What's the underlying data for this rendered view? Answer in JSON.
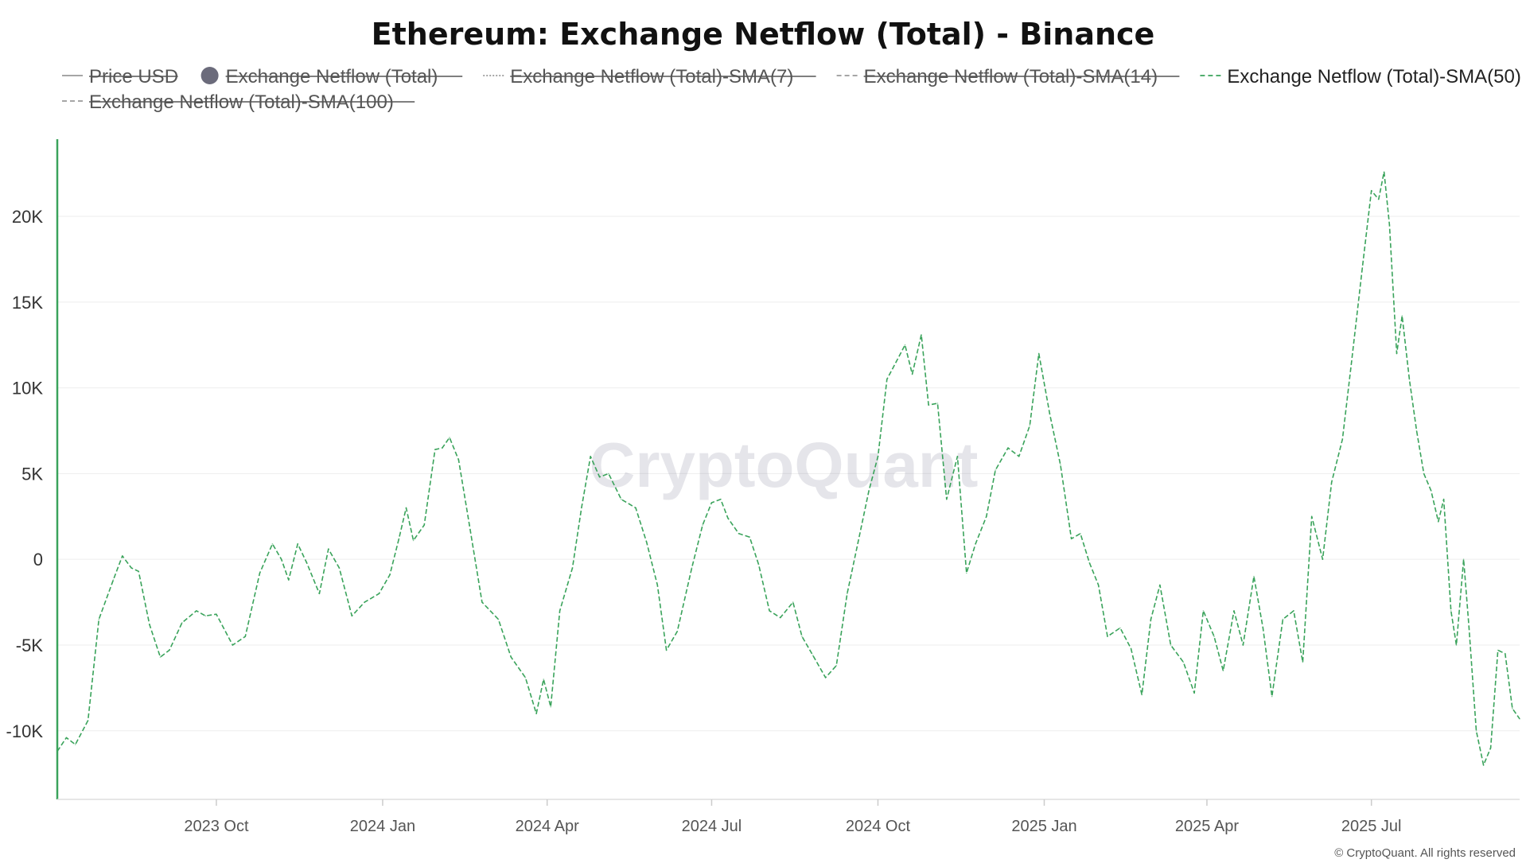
{
  "chart_data": {
    "type": "line",
    "title": "Ethereum: Exchange Netflow (Total) - Binance",
    "legend": [
      {
        "name": "Price USD",
        "style": "solid-line",
        "active": false
      },
      {
        "name": "Exchange Netflow (Total)",
        "style": "dot",
        "active": false
      },
      {
        "name": "Exchange Netflow (Total)-SMA(7)",
        "style": "dotted-line",
        "active": false
      },
      {
        "name": "Exchange Netflow (Total)-SMA(14)",
        "style": "dashed-line",
        "active": false
      },
      {
        "name": "Exchange Netflow (Total)-SMA(50)",
        "style": "dashed-line",
        "active": true
      },
      {
        "name": "Exchange Netflow (Total)-SMA(100)",
        "style": "dashed-line",
        "active": false
      }
    ],
    "legend_placement": "top",
    "y_ticks": [
      {
        "value": -10000,
        "label": "-10K"
      },
      {
        "value": -5000,
        "label": "-5K"
      },
      {
        "value": 0,
        "label": "0"
      },
      {
        "value": 5000,
        "label": "5K"
      },
      {
        "value": 10000,
        "label": "10K"
      },
      {
        "value": 15000,
        "label": "15K"
      },
      {
        "value": 20000,
        "label": "20K"
      }
    ],
    "ylim": [
      -14000,
      24500
    ],
    "x_ticks": [
      {
        "date": "2023-10-01",
        "label": "2023 Oct"
      },
      {
        "date": "2024-01-01",
        "label": "2024 Jan"
      },
      {
        "date": "2024-04-01",
        "label": "2024 Apr"
      },
      {
        "date": "2024-07-01",
        "label": "2024 Jul"
      },
      {
        "date": "2024-10-01",
        "label": "2024 Oct"
      },
      {
        "date": "2025-01-01",
        "label": "2025 Jan"
      },
      {
        "date": "2025-04-01",
        "label": "2025 Apr"
      },
      {
        "date": "2025-07-01",
        "label": "2025 Jul"
      }
    ],
    "xlim": [
      "2023-07-05",
      "2025-09-21"
    ],
    "grid": true,
    "series": [
      {
        "name": "Exchange Netflow (Total)-SMA(50)",
        "color": "#3aa35b",
        "points": [
          [
            "2023-07-05",
            -11200
          ],
          [
            "2023-07-10",
            -10400
          ],
          [
            "2023-07-15",
            -10800
          ],
          [
            "2023-07-22",
            -9400
          ],
          [
            "2023-07-28",
            -3500
          ],
          [
            "2023-08-05",
            -1200
          ],
          [
            "2023-08-10",
            200
          ],
          [
            "2023-08-15",
            -500
          ],
          [
            "2023-08-19",
            -700
          ],
          [
            "2023-08-25",
            -3800
          ],
          [
            "2023-08-31",
            -5700
          ],
          [
            "2023-09-05",
            -5300
          ],
          [
            "2023-09-12",
            -3700
          ],
          [
            "2023-09-20",
            -3000
          ],
          [
            "2023-09-25",
            -3300
          ],
          [
            "2023-10-01",
            -3200
          ],
          [
            "2023-10-10",
            -5000
          ],
          [
            "2023-10-17",
            -4500
          ],
          [
            "2023-10-25",
            -800
          ],
          [
            "2023-11-01",
            900
          ],
          [
            "2023-11-06",
            0
          ],
          [
            "2023-11-10",
            -1200
          ],
          [
            "2023-11-15",
            900
          ],
          [
            "2023-11-20",
            -200
          ],
          [
            "2023-11-27",
            -2000
          ],
          [
            "2023-12-02",
            600
          ],
          [
            "2023-12-08",
            -500
          ],
          [
            "2023-12-15",
            -3300
          ],
          [
            "2023-12-22",
            -2500
          ],
          [
            "2023-12-30",
            -2000
          ],
          [
            "2024-01-05",
            -900
          ],
          [
            "2024-01-10",
            1200
          ],
          [
            "2024-01-14",
            3000
          ],
          [
            "2024-01-18",
            1100
          ],
          [
            "2024-01-24",
            2000
          ],
          [
            "2024-01-30",
            6400
          ],
          [
            "2024-02-03",
            6500
          ],
          [
            "2024-02-07",
            7100
          ],
          [
            "2024-02-12",
            5800
          ],
          [
            "2024-02-18",
            2000
          ],
          [
            "2024-02-25",
            -2500
          ],
          [
            "2024-03-05",
            -3500
          ],
          [
            "2024-03-12",
            -5700
          ],
          [
            "2024-03-20",
            -6900
          ],
          [
            "2024-03-26",
            -9000
          ],
          [
            "2024-03-30",
            -7000
          ],
          [
            "2024-04-03",
            -8600
          ],
          [
            "2024-04-08",
            -3000
          ],
          [
            "2024-04-15",
            -500
          ],
          [
            "2024-04-20",
            3000
          ],
          [
            "2024-04-25",
            6000
          ],
          [
            "2024-04-30",
            4800
          ],
          [
            "2024-05-05",
            5000
          ],
          [
            "2024-05-12",
            3500
          ],
          [
            "2024-05-20",
            3000
          ],
          [
            "2024-05-26",
            1000
          ],
          [
            "2024-06-01",
            -1500
          ],
          [
            "2024-06-06",
            -5300
          ],
          [
            "2024-06-12",
            -4200
          ],
          [
            "2024-06-20",
            -500
          ],
          [
            "2024-06-26",
            2000
          ],
          [
            "2024-07-01",
            3300
          ],
          [
            "2024-07-06",
            3500
          ],
          [
            "2024-07-10",
            2400
          ],
          [
            "2024-07-16",
            1500
          ],
          [
            "2024-07-22",
            1300
          ],
          [
            "2024-07-27",
            -300
          ],
          [
            "2024-08-02",
            -3000
          ],
          [
            "2024-08-08",
            -3400
          ],
          [
            "2024-08-15",
            -2500
          ],
          [
            "2024-08-20",
            -4500
          ],
          [
            "2024-08-26",
            -5600
          ],
          [
            "2024-09-02",
            -6900
          ],
          [
            "2024-09-08",
            -6200
          ],
          [
            "2024-09-14",
            -2000
          ],
          [
            "2024-09-20",
            1000
          ],
          [
            "2024-09-26",
            4000
          ],
          [
            "2024-10-01",
            6000
          ],
          [
            "2024-10-06",
            10500
          ],
          [
            "2024-10-11",
            11500
          ],
          [
            "2024-10-16",
            12500
          ],
          [
            "2024-10-20",
            10800
          ],
          [
            "2024-10-25",
            13100
          ],
          [
            "2024-10-29",
            9000
          ],
          [
            "2024-11-03",
            9100
          ],
          [
            "2024-11-08",
            3500
          ],
          [
            "2024-11-14",
            6000
          ],
          [
            "2024-11-19",
            -800
          ],
          [
            "2024-11-24",
            900
          ],
          [
            "2024-11-30",
            2500
          ],
          [
            "2024-12-05",
            5200
          ],
          [
            "2024-12-12",
            6500
          ],
          [
            "2024-12-18",
            6000
          ],
          [
            "2024-12-24",
            7800
          ],
          [
            "2024-12-29",
            12000
          ],
          [
            "2025-01-04",
            8500
          ],
          [
            "2025-01-10",
            5500
          ],
          [
            "2025-01-16",
            1200
          ],
          [
            "2025-01-21",
            1500
          ],
          [
            "2025-01-26",
            -200
          ],
          [
            "2025-01-31",
            -1500
          ],
          [
            "2025-02-05",
            -4500
          ],
          [
            "2025-02-12",
            -4000
          ],
          [
            "2025-02-18",
            -5200
          ],
          [
            "2025-02-24",
            -7900
          ],
          [
            "2025-03-01",
            -3500
          ],
          [
            "2025-03-06",
            -1500
          ],
          [
            "2025-03-12",
            -5000
          ],
          [
            "2025-03-19",
            -6000
          ],
          [
            "2025-03-25",
            -7800
          ],
          [
            "2025-03-30",
            -3000
          ],
          [
            "2025-04-05",
            -4500
          ],
          [
            "2025-04-10",
            -6500
          ],
          [
            "2025-04-16",
            -3000
          ],
          [
            "2025-04-21",
            -5000
          ],
          [
            "2025-04-27",
            -1000
          ],
          [
            "2025-05-02",
            -4000
          ],
          [
            "2025-05-07",
            -8000
          ],
          [
            "2025-05-13",
            -3500
          ],
          [
            "2025-05-19",
            -3000
          ],
          [
            "2025-05-24",
            -6000
          ],
          [
            "2025-05-29",
            2500
          ],
          [
            "2025-06-04",
            0
          ],
          [
            "2025-06-09",
            4500
          ],
          [
            "2025-06-15",
            7000
          ],
          [
            "2025-06-20",
            11500
          ],
          [
            "2025-06-26",
            17000
          ],
          [
            "2025-07-01",
            21500
          ],
          [
            "2025-07-05",
            21000
          ],
          [
            "2025-07-08",
            22600
          ],
          [
            "2025-07-11",
            19500
          ],
          [
            "2025-07-15",
            12000
          ],
          [
            "2025-07-18",
            14200
          ],
          [
            "2025-07-22",
            10500
          ],
          [
            "2025-07-26",
            7500
          ],
          [
            "2025-07-30",
            5000
          ],
          [
            "2025-08-03",
            4000
          ],
          [
            "2025-08-07",
            2200
          ],
          [
            "2025-08-10",
            3500
          ],
          [
            "2025-08-14",
            -3000
          ],
          [
            "2025-08-17",
            -5000
          ],
          [
            "2025-08-21",
            0
          ],
          [
            "2025-08-24",
            -4000
          ],
          [
            "2025-08-28",
            -10000
          ],
          [
            "2025-09-01",
            -12000
          ],
          [
            "2025-09-05",
            -11000
          ],
          [
            "2025-09-09",
            -5300
          ],
          [
            "2025-09-13",
            -5500
          ],
          [
            "2025-09-17",
            -8700
          ],
          [
            "2025-09-21",
            -9300
          ]
        ]
      }
    ],
    "watermark": "CryptoQuant",
    "copyright": "© CryptoQuant. All rights reserved"
  }
}
